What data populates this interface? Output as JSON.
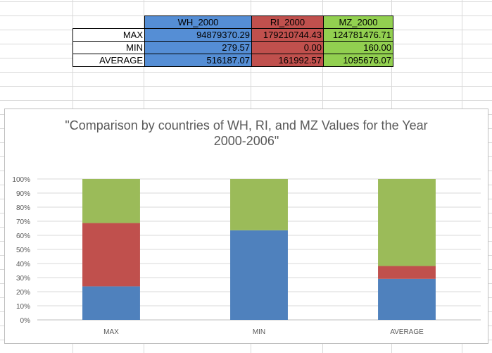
{
  "table": {
    "headers": [
      "WH_2000",
      "RI_2000",
      "MZ_2000"
    ],
    "rows": [
      {
        "label": "MAX",
        "values": [
          "94879370.29",
          "179210744.43",
          "124781476.71"
        ]
      },
      {
        "label": "MIN",
        "values": [
          "279.57",
          "0.00",
          "160.00"
        ]
      },
      {
        "label": "AVERAGE",
        "values": [
          "516187.07",
          "161992.57",
          "1095676.07"
        ]
      }
    ],
    "colors": {
      "wh": "#558ed5",
      "ri": "#c0504d",
      "mz": "#92d050"
    }
  },
  "chart_data": {
    "type": "bar",
    "stacked": "percent",
    "title": "\"Comparison  by countries of WH, RI, and MZ Values for the Year 2000-2006\"",
    "title_lines": [
      "\"Comparison  by countries of WH, RI, and MZ Values for the Year",
      "2000-2006\""
    ],
    "categories": [
      "MAX",
      "MIN",
      "AVERAGE"
    ],
    "series": [
      {
        "values": [
          94879370.29,
          279.57,
          516187.07
        ],
        "color": "#4f81bd"
      },
      {
        "values": [
          179210744.43,
          0.0,
          161992.57
        ],
        "color": "#c0504d"
      },
      {
        "values": [
          124781476.71,
          160.0,
          1095676.07
        ],
        "color": "#9bbb59"
      }
    ],
    "ytick_labels": [
      "0%",
      "10%",
      "20%",
      "30%",
      "40%",
      "50%",
      "60%",
      "70%",
      "80%",
      "90%",
      "100%"
    ],
    "ylim": [
      0,
      100
    ],
    "grid": true,
    "legend": "none"
  }
}
